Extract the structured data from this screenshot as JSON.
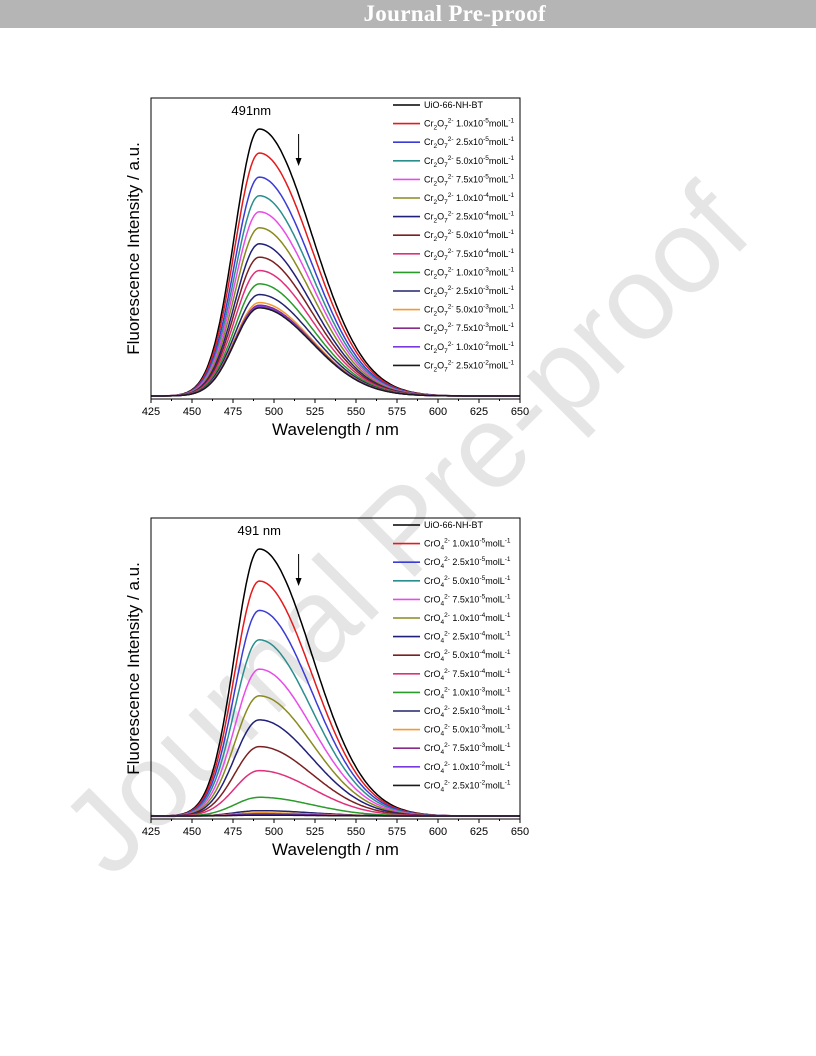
{
  "header": {
    "banner": "Journal Pre-proof"
  },
  "watermark": "Journal Pre-proof",
  "colors": [
    "#000000",
    "#e41a1c",
    "#3b3bd6",
    "#2a8e8e",
    "#e84ce8",
    "#8a8a20",
    "#20207a",
    "#7a2020",
    "#e0307a",
    "#2a9a2a",
    "#24246e",
    "#f09a30",
    "#8a2a8a",
    "#7a3ae0",
    "#1a1a1a"
  ],
  "chart_data": [
    {
      "type": "line",
      "xlabel": "Wavelength / nm",
      "ylabel": "Fluorescence Intensity / a.u.",
      "xlim": [
        425,
        650
      ],
      "xticks": [
        "425",
        "450",
        "475",
        "500",
        "525",
        "550",
        "575",
        "600",
        "625",
        "650"
      ],
      "annotation": "491nm",
      "peak_x": 491,
      "legend_position": "top-right",
      "series": [
        {
          "name": "UiO-66-NH-BT",
          "peak": 1.0
        },
        {
          "name": "Cr2O72- 1.0x10-5molL-1",
          "ion_main": "Cr",
          "sub1": "2",
          "mid": "O",
          "sub2": "7",
          "sup": "2-",
          "conc": "1.0x10",
          "exp": "-5",
          "unit": "molL",
          "uexp": "-1",
          "peak": 0.91
        },
        {
          "name": "Cr2O72- 2.5x10-5molL-1",
          "ion_main": "Cr",
          "sub1": "2",
          "mid": "O",
          "sub2": "7",
          "sup": "2-",
          "conc": "2.5x10",
          "exp": "-5",
          "unit": "molL",
          "uexp": "-1",
          "peak": 0.82
        },
        {
          "name": "Cr2O72- 5.0x10-5molL-1",
          "ion_main": "Cr",
          "sub1": "2",
          "mid": "O",
          "sub2": "7",
          "sup": "2-",
          "conc": "5.0x10",
          "exp": "-5",
          "unit": "molL",
          "uexp": "-1",
          "peak": 0.75
        },
        {
          "name": "Cr2O72- 7.5x10-5molL-1",
          "ion_main": "Cr",
          "sub1": "2",
          "mid": "O",
          "sub2": "7",
          "sup": "2-",
          "conc": "7.5x10",
          "exp": "-5",
          "unit": "molL",
          "uexp": "-1",
          "peak": 0.69
        },
        {
          "name": "Cr2O72- 1.0x10-4molL-1",
          "ion_main": "Cr",
          "sub1": "2",
          "mid": "O",
          "sub2": "7",
          "sup": "2-",
          "conc": "1.0x10",
          "exp": "-4",
          "unit": "molL",
          "uexp": "-1",
          "peak": 0.63
        },
        {
          "name": "Cr2O72- 2.5x10-4molL-1",
          "ion_main": "Cr",
          "sub1": "2",
          "mid": "O",
          "sub2": "7",
          "sup": "2-",
          "conc": "2.5x10",
          "exp": "-4",
          "unit": "molL",
          "uexp": "-1",
          "peak": 0.57
        },
        {
          "name": "Cr2O72- 5.0x10-4molL-1",
          "ion_main": "Cr",
          "sub1": "2",
          "mid": "O",
          "sub2": "7",
          "sup": "2-",
          "conc": "5.0x10",
          "exp": "-4",
          "unit": "molL",
          "uexp": "-1",
          "peak": 0.52
        },
        {
          "name": "Cr2O72- 7.5x10-4molL-1",
          "ion_main": "Cr",
          "sub1": "2",
          "mid": "O",
          "sub2": "7",
          "sup": "2-",
          "conc": "7.5x10",
          "exp": "-4",
          "unit": "molL",
          "uexp": "-1",
          "peak": 0.47
        },
        {
          "name": "Cr2O72- 1.0x10-3molL-1",
          "ion_main": "Cr",
          "sub1": "2",
          "mid": "O",
          "sub2": "7",
          "sup": "2-",
          "conc": "1.0x10",
          "exp": "-3",
          "unit": "molL",
          "uexp": "-1",
          "peak": 0.42
        },
        {
          "name": "Cr2O72- 2.5x10-3molL-1",
          "ion_main": "Cr",
          "sub1": "2",
          "mid": "O",
          "sub2": "7",
          "sup": "2-",
          "conc": "2.5x10",
          "exp": "-3",
          "unit": "molL",
          "uexp": "-1",
          "peak": 0.38
        },
        {
          "name": "Cr2O72- 5.0x10-3molL-1",
          "ion_main": "Cr",
          "sub1": "2",
          "mid": "O",
          "sub2": "7",
          "sup": "2-",
          "conc": "5.0x10",
          "exp": "-3",
          "unit": "molL",
          "uexp": "-1",
          "peak": 0.35
        },
        {
          "name": "Cr2O72- 7.5x10-3molL-1",
          "ion_main": "Cr",
          "sub1": "2",
          "mid": "O",
          "sub2": "7",
          "sup": "2-",
          "conc": "7.5x10",
          "exp": "-3",
          "unit": "molL",
          "uexp": "-1",
          "peak": 0.34
        },
        {
          "name": "Cr2O72- 1.0x10-2molL-1",
          "ion_main": "Cr",
          "sub1": "2",
          "mid": "O",
          "sub2": "7",
          "sup": "2-",
          "conc": "1.0x10",
          "exp": "-2",
          "unit": "molL",
          "uexp": "-1",
          "peak": 0.335
        },
        {
          "name": "Cr2O72- 2.5x10-2molL-1",
          "ion_main": "Cr",
          "sub1": "2",
          "mid": "O",
          "sub2": "7",
          "sup": "2-",
          "conc": "2.5x10",
          "exp": "-2",
          "unit": "molL",
          "uexp": "-1",
          "peak": 0.33
        }
      ]
    },
    {
      "type": "line",
      "xlabel": "Wavelength / nm",
      "ylabel": "Fluorescence Intensity / a.u.",
      "xlim": [
        425,
        650
      ],
      "xticks": [
        "425",
        "450",
        "475",
        "500",
        "525",
        "550",
        "575",
        "600",
        "625",
        "650"
      ],
      "annotation": "491 nm",
      "peak_x": 491,
      "legend_position": "top-right",
      "series": [
        {
          "name": "UiO-66-NH-BT",
          "peak": 1.0
        },
        {
          "name": "CrO42- 1.0x10-5molL-1",
          "ion_main": "CrO",
          "sub1": "",
          "mid": "",
          "sub2": "4",
          "sup": "2-",
          "conc": "1.0x10",
          "exp": "-5",
          "unit": "molL",
          "uexp": "-1",
          "peak": 0.88
        },
        {
          "name": "CrO42- 2.5x10-5molL-1",
          "ion_main": "CrO",
          "sub1": "",
          "mid": "",
          "sub2": "4",
          "sup": "2-",
          "conc": "2.5x10",
          "exp": "-5",
          "unit": "molL",
          "uexp": "-1",
          "peak": 0.77
        },
        {
          "name": "CrO42- 5.0x10-5molL-1",
          "ion_main": "CrO",
          "sub1": "",
          "mid": "",
          "sub2": "4",
          "sup": "2-",
          "conc": "5.0x10",
          "exp": "-5",
          "unit": "molL",
          "uexp": "-1",
          "peak": 0.66
        },
        {
          "name": "CrO42- 7.5x10-5molL-1",
          "ion_main": "CrO",
          "sub1": "",
          "mid": "",
          "sub2": "4",
          "sup": "2-",
          "conc": "7.5x10",
          "exp": "-5",
          "unit": "molL",
          "uexp": "-1",
          "peak": 0.55
        },
        {
          "name": "CrO42- 1.0x10-4molL-1",
          "ion_main": "CrO",
          "sub1": "",
          "mid": "",
          "sub2": "4",
          "sup": "2-",
          "conc": "1.0x10",
          "exp": "-4",
          "unit": "molL",
          "uexp": "-1",
          "peak": 0.45
        },
        {
          "name": "CrO42- 2.5x10-4molL-1",
          "ion_main": "CrO",
          "sub1": "",
          "mid": "",
          "sub2": "4",
          "sup": "2-",
          "conc": "2.5x10",
          "exp": "-4",
          "unit": "molL",
          "uexp": "-1",
          "peak": 0.36
        },
        {
          "name": "CrO42- 5.0x10-4molL-1",
          "ion_main": "CrO",
          "sub1": "",
          "mid": "",
          "sub2": "4",
          "sup": "2-",
          "conc": "5.0x10",
          "exp": "-4",
          "unit": "molL",
          "uexp": "-1",
          "peak": 0.26
        },
        {
          "name": "CrO42- 7.5x10-4molL-1",
          "ion_main": "CrO",
          "sub1": "",
          "mid": "",
          "sub2": "4",
          "sup": "2-",
          "conc": "7.5x10",
          "exp": "-4",
          "unit": "molL",
          "uexp": "-1",
          "peak": 0.17
        },
        {
          "name": "CrO42- 1.0x10-3molL-1",
          "ion_main": "CrO",
          "sub1": "",
          "mid": "",
          "sub2": "4",
          "sup": "2-",
          "conc": "1.0x10",
          "exp": "-3",
          "unit": "molL",
          "uexp": "-1",
          "peak": 0.07
        },
        {
          "name": "CrO42- 2.5x10-3molL-1",
          "ion_main": "CrO",
          "sub1": "",
          "mid": "",
          "sub2": "4",
          "sup": "2-",
          "conc": "2.5x10",
          "exp": "-3",
          "unit": "molL",
          "uexp": "-1",
          "peak": 0.02
        },
        {
          "name": "CrO42- 5.0x10-3molL-1",
          "ion_main": "CrO",
          "sub1": "",
          "mid": "",
          "sub2": "4",
          "sup": "2-",
          "conc": "5.0x10",
          "exp": "-3",
          "unit": "molL",
          "uexp": "-1",
          "peak": 0.012
        },
        {
          "name": "CrO42- 7.5x10-3molL-1",
          "ion_main": "CrO",
          "sub1": "",
          "mid": "",
          "sub2": "4",
          "sup": "2-",
          "conc": "7.5x10",
          "exp": "-3",
          "unit": "molL",
          "uexp": "-1",
          "peak": 0.008
        },
        {
          "name": "CrO42- 1.0x10-2molL-1",
          "ion_main": "CrO",
          "sub1": "",
          "mid": "",
          "sub2": "4",
          "sup": "2-",
          "conc": "1.0x10",
          "exp": "-2",
          "unit": "molL",
          "uexp": "-1",
          "peak": 0.005
        },
        {
          "name": "CrO42- 2.5x10-2molL-1",
          "ion_main": "CrO",
          "sub1": "",
          "mid": "",
          "sub2": "4",
          "sup": "2-",
          "conc": "2.5x10",
          "exp": "-2",
          "unit": "molL",
          "uexp": "-1",
          "peak": 0.003
        }
      ]
    }
  ]
}
